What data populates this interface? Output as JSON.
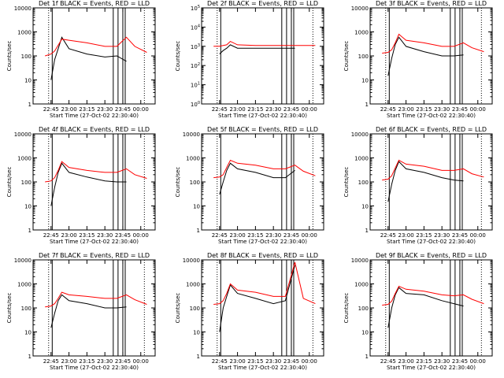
{
  "colors": {
    "events": "#000000",
    "lld": "#ff0000",
    "axis": "#000000",
    "background": "#ffffff"
  },
  "xlabel": "Start Time (27-Oct-02 22:30:40)",
  "ylabel": "Counts/sec",
  "xticks": [
    "22:45",
    "23:00",
    "23:15",
    "23:30",
    "23:45",
    "00:00"
  ],
  "yticks_decade": [
    "1",
    "10",
    "100",
    "1000",
    "10000"
  ],
  "yticks_exp": [
    "10^0",
    "10^1",
    "10^2",
    "10^3",
    "10^4",
    "10^5"
  ],
  "chart_data": [
    {
      "title": "Det 1f BLACK = Events, RED = LLD",
      "type": "line",
      "yscale": "log",
      "ylim": [
        1,
        10000
      ],
      "x": [
        "22:40",
        "22:45",
        "22:48",
        "22:51",
        "22:54",
        "23:00",
        "23:15",
        "23:30",
        "23:40",
        "23:48",
        "23:55",
        "00:05"
      ],
      "series": [
        {
          "name": "Events",
          "values": [
            null,
            10,
            70,
            200,
            600,
            200,
            120,
            90,
            100,
            60,
            null,
            null
          ]
        },
        {
          "name": "LLD",
          "values": [
            100,
            120,
            160,
            280,
            500,
            450,
            350,
            250,
            250,
            600,
            250,
            140
          ]
        }
      ]
    },
    {
      "title": "Det 2f BLACK = Events, RED = LLD",
      "type": "line",
      "yscale": "log",
      "ylim": [
        1,
        100000
      ],
      "x": [
        "22:40",
        "22:45",
        "22:48",
        "22:51",
        "22:54",
        "23:00",
        "23:15",
        "23:30",
        "23:40",
        "23:48",
        "23:55",
        "00:05"
      ],
      "series": [
        {
          "name": "Events",
          "values": [
            null,
            400,
            600,
            800,
            1200,
            800,
            800,
            800,
            800,
            800,
            null,
            null
          ]
        },
        {
          "name": "LLD",
          "values": [
            1000,
            1000,
            1100,
            1200,
            1800,
            1200,
            1100,
            1100,
            1100,
            1100,
            1100,
            1100
          ]
        }
      ]
    },
    {
      "title": "Det 3f BLACK = Events, RED = LLD",
      "type": "line",
      "yscale": "log",
      "ylim": [
        1,
        10000
      ],
      "x": [
        "22:40",
        "22:45",
        "22:48",
        "22:51",
        "22:54",
        "23:00",
        "23:15",
        "23:30",
        "23:40",
        "23:48",
        "23:55",
        "00:05"
      ],
      "series": [
        {
          "name": "Events",
          "values": [
            null,
            15,
            80,
            300,
            600,
            250,
            150,
            100,
            100,
            110,
            null,
            null
          ]
        },
        {
          "name": "LLD",
          "values": [
            130,
            140,
            180,
            350,
            800,
            450,
            350,
            250,
            250,
            350,
            220,
            150
          ]
        }
      ]
    },
    {
      "title": "Det 4f BLACK = Events, RED = LLD",
      "type": "line",
      "yscale": "log",
      "ylim": [
        1,
        10000
      ],
      "x": [
        "22:40",
        "22:45",
        "22:48",
        "22:51",
        "22:54",
        "23:00",
        "23:15",
        "23:30",
        "23:40",
        "23:48",
        "23:55",
        "00:05"
      ],
      "series": [
        {
          "name": "Events",
          "values": [
            null,
            10,
            60,
            250,
            600,
            250,
            160,
            110,
            100,
            100,
            null,
            null
          ]
        },
        {
          "name": "LLD",
          "values": [
            100,
            110,
            150,
            300,
            700,
            400,
            300,
            250,
            250,
            350,
            200,
            140
          ]
        }
      ]
    },
    {
      "title": "Det 5f BLACK = Events, RED = LLD",
      "type": "line",
      "yscale": "log",
      "ylim": [
        1,
        10000
      ],
      "x": [
        "22:40",
        "22:45",
        "22:48",
        "22:51",
        "22:54",
        "23:00",
        "23:15",
        "23:30",
        "23:40",
        "23:48",
        "23:55",
        "00:05"
      ],
      "series": [
        {
          "name": "Events",
          "values": [
            null,
            30,
            100,
            300,
            600,
            350,
            250,
            150,
            150,
            300,
            null,
            null
          ]
        },
        {
          "name": "LLD",
          "values": [
            150,
            160,
            200,
            400,
            800,
            600,
            500,
            350,
            350,
            500,
            280,
            180
          ]
        }
      ]
    },
    {
      "title": "Det 6f BLACK = Events, RED = LLD",
      "type": "line",
      "yscale": "log",
      "ylim": [
        1,
        10000
      ],
      "x": [
        "22:40",
        "22:45",
        "22:48",
        "22:51",
        "22:54",
        "23:00",
        "23:15",
        "23:30",
        "23:40",
        "23:48",
        "23:55",
        "00:05"
      ],
      "series": [
        {
          "name": "Events",
          "values": [
            null,
            15,
            80,
            300,
            700,
            350,
            250,
            150,
            120,
            110,
            null,
            null
          ]
        },
        {
          "name": "LLD",
          "values": [
            120,
            130,
            180,
            380,
            800,
            550,
            450,
            300,
            300,
            350,
            220,
            160
          ]
        }
      ]
    },
    {
      "title": "Det 7f BLACK = Events, RED = LLD",
      "type": "line",
      "yscale": "log",
      "ylim": [
        1,
        10000
      ],
      "x": [
        "22:40",
        "22:45",
        "22:48",
        "22:51",
        "22:54",
        "23:00",
        "23:15",
        "23:30",
        "23:40",
        "23:48",
        "23:55",
        "00:05"
      ],
      "series": [
        {
          "name": "Events",
          "values": [
            null,
            15,
            60,
            200,
            350,
            200,
            150,
            100,
            100,
            110,
            null,
            null
          ]
        },
        {
          "name": "LLD",
          "values": [
            110,
            120,
            150,
            250,
            450,
            350,
            300,
            250,
            250,
            350,
            220,
            140
          ]
        }
      ]
    },
    {
      "title": "Det 8f BLACK = Events, RED = LLD",
      "type": "line",
      "yscale": "log",
      "ylim": [
        1,
        10000
      ],
      "x": [
        "22:40",
        "22:45",
        "22:48",
        "22:51",
        "22:54",
        "23:00",
        "23:15",
        "23:30",
        "23:40",
        "23:48",
        "23:55",
        "00:05"
      ],
      "series": [
        {
          "name": "Events",
          "values": [
            null,
            10,
            100,
            300,
            900,
            400,
            250,
            150,
            200,
            6000,
            null,
            null
          ]
        },
        {
          "name": "LLD",
          "values": [
            140,
            150,
            200,
            400,
            1000,
            550,
            450,
            300,
            300,
            8000,
            250,
            150
          ]
        }
      ]
    },
    {
      "title": "Det 9f BLACK = Events, RED = LLD",
      "type": "line",
      "yscale": "log",
      "ylim": [
        1,
        10000
      ],
      "x": [
        "22:40",
        "22:45",
        "22:48",
        "22:51",
        "22:54",
        "23:00",
        "23:15",
        "23:30",
        "23:40",
        "23:48",
        "23:55",
        "00:05"
      ],
      "series": [
        {
          "name": "Events",
          "values": [
            null,
            15,
            100,
            350,
            700,
            400,
            350,
            200,
            150,
            120,
            null,
            null
          ]
        },
        {
          "name": "LLD",
          "values": [
            130,
            140,
            190,
            400,
            800,
            600,
            500,
            350,
            320,
            350,
            230,
            150
          ]
        }
      ]
    }
  ]
}
